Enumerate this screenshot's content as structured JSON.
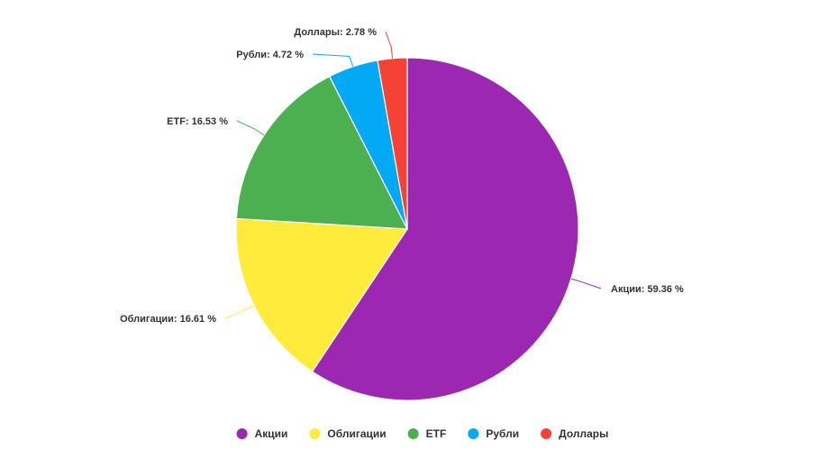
{
  "chart_data": {
    "type": "pie",
    "title": "",
    "categories": [
      "Акции",
      "Облигации",
      "ETF",
      "Рубли",
      "Доллары"
    ],
    "values": [
      59.36,
      16.61,
      16.53,
      4.72,
      2.78
    ],
    "colors": [
      "#9c27b0",
      "#ffeb3b",
      "#4caf50",
      "#03a9f4",
      "#f44336"
    ],
    "data_labels": [
      "Акции: 59.36 %",
      "Облигации: 16.61 %",
      "ETF: 16.53 %",
      "Рубли: 4.72 %",
      "Доллары: 2.78 %"
    ],
    "legend": {
      "position": "bottom",
      "items": [
        "Акции",
        "Облигации",
        "ETF",
        "Рубли",
        "Доллары"
      ]
    }
  }
}
